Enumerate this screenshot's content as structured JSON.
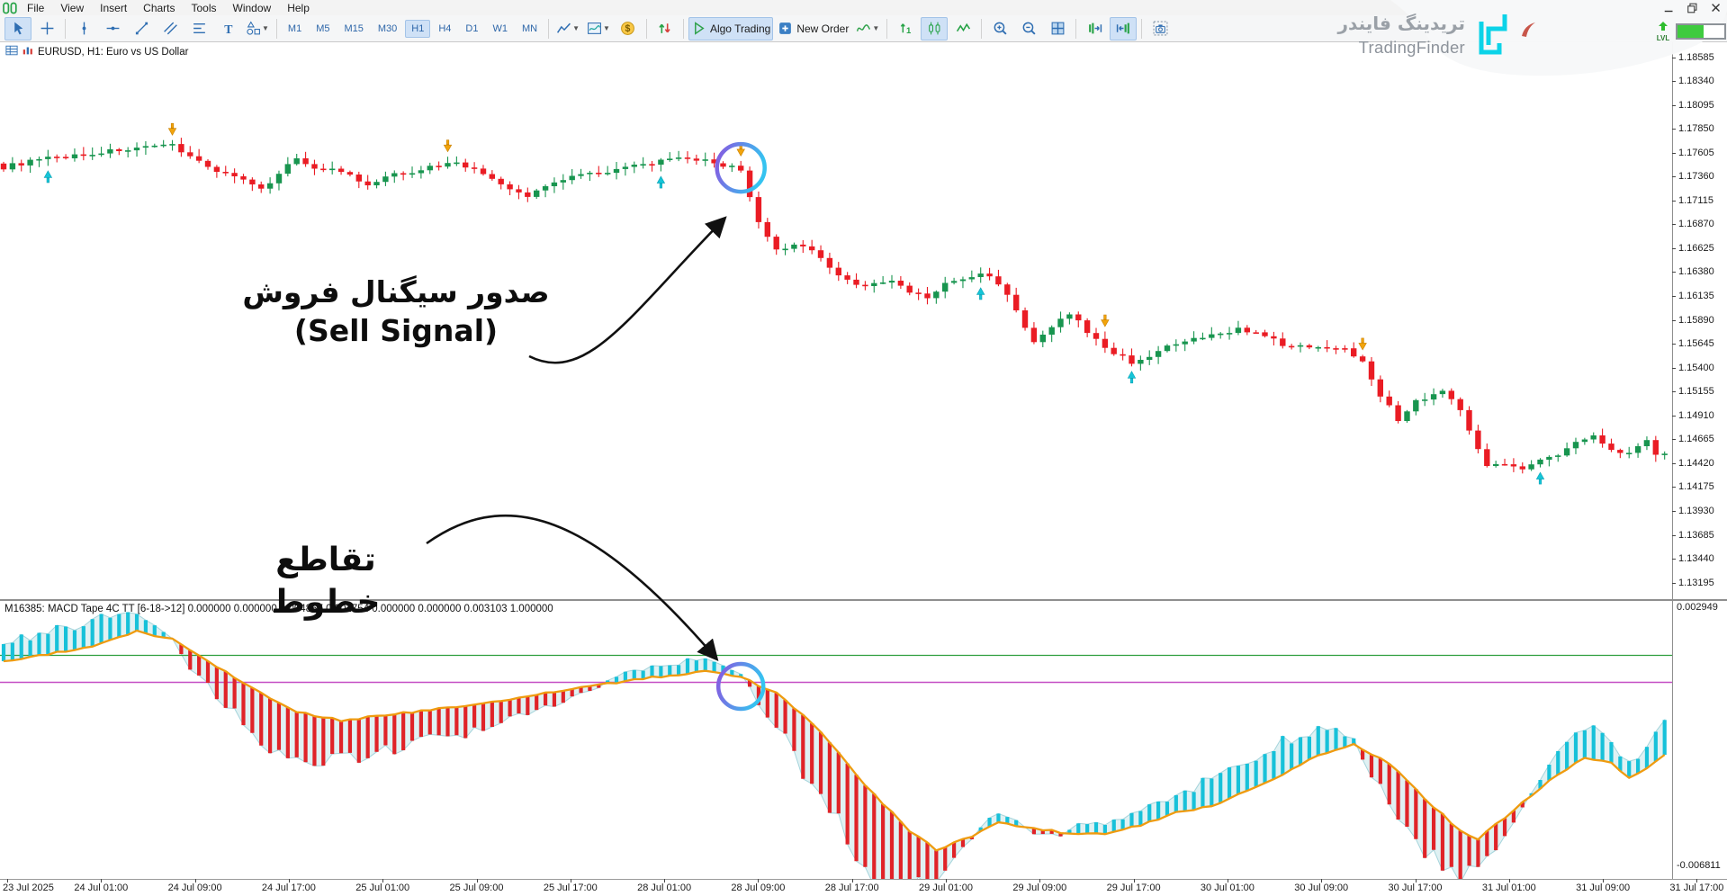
{
  "window": {
    "controls": [
      {
        "icon": "minimize-icon"
      },
      {
        "icon": "restore-icon"
      },
      {
        "icon": "close-icon"
      }
    ]
  },
  "menu": {
    "items": [
      "File",
      "View",
      "Insert",
      "Charts",
      "Tools",
      "Window",
      "Help"
    ]
  },
  "toolbar": {
    "groups": [
      {
        "items": [
          {
            "icon": "cursor-icon",
            "active": true
          },
          {
            "icon": "crosshair-icon"
          }
        ]
      },
      {
        "items": [
          {
            "icon": "vertical-line-icon"
          },
          {
            "icon": "horizontal-line-icon"
          },
          {
            "icon": "trendline-icon"
          },
          {
            "icon": "channel-icon"
          },
          {
            "icon": "fibonacci-icon"
          },
          {
            "icon": "text-tool-icon"
          },
          {
            "icon": "shapes-icon",
            "dropdown": true
          }
        ]
      },
      {
        "timeframes": [
          "M1",
          "M5",
          "M15",
          "M30",
          "H1",
          "H4",
          "D1",
          "W1",
          "MN"
        ],
        "active": "H1"
      },
      {
        "items": [
          {
            "icon": "line-chart-icon",
            "dropdown": true
          },
          {
            "icon": "indicator-window-icon",
            "dropdown": true
          },
          {
            "icon": "dollar-icon"
          }
        ]
      },
      {
        "items": [
          {
            "icon": "buy-sell-arrows-icon"
          }
        ]
      },
      {
        "items": [
          {
            "icon": "algo-play-icon",
            "label": "Algo Trading",
            "active": true,
            "name": "algo-trading-button"
          },
          {
            "icon": "new-order-icon",
            "label": "New Order",
            "name": "new-order-button"
          },
          {
            "icon": "indicator-curve-icon",
            "dropdown": true
          }
        ]
      },
      {
        "items": [
          {
            "icon": "scale-updown-icon"
          },
          {
            "icon": "candles-icon",
            "active": true
          },
          {
            "icon": "zigzag-icon"
          }
        ]
      },
      {
        "items": [
          {
            "icon": "zoom-in-icon"
          },
          {
            "icon": "zoom-out-icon"
          },
          {
            "icon": "tile-windows-icon"
          }
        ]
      },
      {
        "items": [
          {
            "icon": "shift-right-icon"
          },
          {
            "icon": "shift-left-icon",
            "active": true
          }
        ]
      },
      {
        "items": [
          {
            "icon": "screenshot-icon"
          }
        ]
      }
    ]
  },
  "chart": {
    "symbol_label": "EURUSD, H1: Euro vs US Dollar",
    "indicator_label": "M16385: MACD Tape 4C TT [6-18->12] 0.000000 0.000000 0.004857 0.001754 0.000000 0.000000 0.003103 1.000000",
    "indicator_scale_top": "0.002949",
    "indicator_scale_bottom": "-0.006811",
    "price_axis_labels": [
      "1.18585",
      "1.18340",
      "1.18095",
      "1.17850",
      "1.17605",
      "1.17360",
      "1.17115",
      "1.16870",
      "1.16625",
      "1.16380",
      "1.16135",
      "1.15890",
      "1.15645",
      "1.15400",
      "1.15155",
      "1.14910",
      "1.14665",
      "1.14420",
      "1.14175",
      "1.13930",
      "1.13685",
      "1.13440",
      "1.13195"
    ]
  },
  "annotations": {
    "sell_fa": "صدور سیگنال فروش",
    "sell_en": "(Sell Signal)",
    "cross_fa": "تقاطع خطوط"
  },
  "watermark": {
    "brand_fa": "تریدینگ فایندر",
    "brand_en": "TradingFinder",
    "lvl": "LVL",
    "progress_percent": 55,
    "logo_color": "#0cd3e8"
  },
  "colors": {
    "candle_up": "#18954f",
    "candle_down": "#ea1c24",
    "buy_marker": "#15c5d8",
    "sell_marker": "#f2a40c",
    "macd_signal_line": "#ef9b0f",
    "macd_bar_up": "#17c1d9",
    "macd_bar_down": "#e02328",
    "zero_line_purple": "#c44fc4",
    "level_line_green": "#2e9e3e",
    "ring_gradient": [
      "#8a55e0",
      "#35c3f0"
    ]
  },
  "chart_data": [
    {
      "type": "candlestick",
      "symbol": "EURUSD",
      "timeframe": "H1",
      "bars": 188,
      "price_axis": {
        "max": 1.18585,
        "min": 1.13195,
        "tick": 0.00245
      },
      "time_labels": [
        "23 Jul 2025",
        "24 Jul 01:00",
        "24 Jul 09:00",
        "24 Jul 17:00",
        "25 Jul 01:00",
        "25 Jul 09:00",
        "25 Jul 17:00",
        "28 Jul 01:00",
        "28 Jul 09:00",
        "28 Jul 17:00",
        "29 Jul 01:00",
        "29 Jul 09:00",
        "29 Jul 17:00",
        "30 Jul 01:00",
        "30 Jul 09:00",
        "30 Jul 17:00",
        "31 Jul 01:00",
        "31 Jul 09:00",
        "31 Jul 17:00"
      ],
      "close_waypoints": [
        [
          0,
          1.1746
        ],
        [
          3,
          1.1752
        ],
        [
          6,
          1.1756
        ],
        [
          10,
          1.176
        ],
        [
          13,
          1.1764
        ],
        [
          17,
          1.1766
        ],
        [
          19,
          1.1769
        ],
        [
          21,
          1.1758
        ],
        [
          23,
          1.1746
        ],
        [
          26,
          1.1737
        ],
        [
          29,
          1.1722
        ],
        [
          31,
          1.1741
        ],
        [
          33,
          1.1755
        ],
        [
          35,
          1.1746
        ],
        [
          38,
          1.1742
        ],
        [
          41,
          1.1726
        ],
        [
          43,
          1.1736
        ],
        [
          46,
          1.1742
        ],
        [
          49,
          1.1748
        ],
        [
          51,
          1.1752
        ],
        [
          53,
          1.1743
        ],
        [
          55,
          1.1735
        ],
        [
          57,
          1.1722
        ],
        [
          59,
          1.1716
        ],
        [
          61,
          1.1727
        ],
        [
          64,
          1.1738
        ],
        [
          68,
          1.1742
        ],
        [
          71,
          1.1747
        ],
        [
          74,
          1.1752
        ],
        [
          77,
          1.1755
        ],
        [
          80,
          1.1751
        ],
        [
          82,
          1.1746
        ],
        [
          83,
          1.1741
        ],
        [
          84,
          1.1714
        ],
        [
          85,
          1.169
        ],
        [
          86,
          1.1673
        ],
        [
          87,
          1.166
        ],
        [
          89,
          1.1668
        ],
        [
          91,
          1.1661
        ],
        [
          93,
          1.1643
        ],
        [
          95,
          1.163
        ],
        [
          97,
          1.1624
        ],
        [
          100,
          1.1629
        ],
        [
          102,
          1.1618
        ],
        [
          104,
          1.1612
        ],
        [
          106,
          1.1626
        ],
        [
          108,
          1.1631
        ],
        [
          110,
          1.1637
        ],
        [
          112,
          1.1628
        ],
        [
          114,
          1.16
        ],
        [
          116,
          1.1565
        ],
        [
          118,
          1.1581
        ],
        [
          120,
          1.1597
        ],
        [
          122,
          1.1577
        ],
        [
          124,
          1.1561
        ],
        [
          127,
          1.1546
        ],
        [
          129,
          1.1553
        ],
        [
          131,
          1.1561
        ],
        [
          134,
          1.1569
        ],
        [
          137,
          1.1575
        ],
        [
          139,
          1.1581
        ],
        [
          142,
          1.1572
        ],
        [
          145,
          1.1561
        ],
        [
          148,
          1.1563
        ],
        [
          151,
          1.1559
        ],
        [
          153,
          1.1548
        ],
        [
          155,
          1.1513
        ],
        [
          157,
          1.1487
        ],
        [
          159,
          1.1506
        ],
        [
          162,
          1.1517
        ],
        [
          164,
          1.1497
        ],
        [
          166,
          1.1459
        ],
        [
          167,
          1.1438
        ],
        [
          169,
          1.1443
        ],
        [
          171,
          1.1438
        ],
        [
          173,
          1.1445
        ],
        [
          175,
          1.1451
        ],
        [
          177,
          1.1463
        ],
        [
          179,
          1.1471
        ],
        [
          181,
          1.1458
        ],
        [
          183,
          1.1452
        ],
        [
          185,
          1.1468
        ],
        [
          186,
          1.1452
        ],
        [
          188,
          1.1449
        ]
      ],
      "markers": {
        "sell_bars": [
          19,
          50,
          83,
          124,
          153
        ],
        "buy_bars": [
          5,
          74,
          110,
          127,
          173
        ]
      },
      "highlight": {
        "bar": 83,
        "meaning": "sell signal circle"
      }
    },
    {
      "type": "macd_tape",
      "title": "MACD Tape 4C TT [6-18->12]",
      "scale": {
        "top": 0.002949,
        "bottom": -0.006811
      },
      "zero_line": 0,
      "green_level": 0.001,
      "signal_waypoints": [
        [
          0,
          0.0008
        ],
        [
          10,
          0.0013
        ],
        [
          15,
          0.0019
        ],
        [
          19,
          0.0016
        ],
        [
          24,
          0.0006
        ],
        [
          28,
          -0.0002
        ],
        [
          33,
          -0.0011
        ],
        [
          38,
          -0.0014
        ],
        [
          46,
          -0.0011
        ],
        [
          56,
          -0.0007
        ],
        [
          63,
          -0.0003
        ],
        [
          71,
          0.0001
        ],
        [
          79,
          0.0004
        ],
        [
          83,
          0.0002
        ],
        [
          87,
          -0.0004
        ],
        [
          92,
          -0.0018
        ],
        [
          97,
          -0.0038
        ],
        [
          102,
          -0.0055
        ],
        [
          105,
          -0.0062
        ],
        [
          109,
          -0.0057
        ],
        [
          112,
          -0.0052
        ],
        [
          116,
          -0.0054
        ],
        [
          120,
          -0.0056
        ],
        [
          124,
          -0.0056
        ],
        [
          128,
          -0.0053
        ],
        [
          132,
          -0.0048
        ],
        [
          136,
          -0.0046
        ],
        [
          140,
          -0.004
        ],
        [
          144,
          -0.0034
        ],
        [
          148,
          -0.0027
        ],
        [
          152,
          -0.0023
        ],
        [
          156,
          -0.003
        ],
        [
          160,
          -0.0043
        ],
        [
          164,
          -0.0055
        ],
        [
          166,
          -0.0058
        ],
        [
          169,
          -0.005
        ],
        [
          172,
          -0.0042
        ],
        [
          175,
          -0.0034
        ],
        [
          178,
          -0.0028
        ],
        [
          181,
          -0.003
        ],
        [
          183,
          -0.0035
        ],
        [
          185,
          -0.0032
        ],
        [
          188,
          -0.0024
        ]
      ],
      "delta_waypoints": [
        [
          0,
          0.0007
        ],
        [
          12,
          0.0009
        ],
        [
          17,
          0.0004
        ],
        [
          19,
          0
        ],
        [
          21,
          -0.0006
        ],
        [
          30,
          -0.0018
        ],
        [
          40,
          -0.0013
        ],
        [
          52,
          -0.001
        ],
        [
          62,
          -0.0005
        ],
        [
          67,
          -0.0001
        ],
        [
          69,
          0.0003
        ],
        [
          77,
          0.0005
        ],
        [
          81,
          0.0003
        ],
        [
          83,
          0.0001
        ],
        [
          85,
          -0.0006
        ],
        [
          90,
          -0.002
        ],
        [
          95,
          -0.003
        ],
        [
          100,
          -0.0026
        ],
        [
          104,
          -0.0015
        ],
        [
          107,
          -0.0006
        ],
        [
          109,
          -0.0001
        ],
        [
          111,
          0.0004
        ],
        [
          114,
          0.0002
        ],
        [
          116,
          -0.0002
        ],
        [
          119,
          -0.0001
        ],
        [
          121,
          0.0004
        ],
        [
          126,
          0.0004
        ],
        [
          131,
          0.0006
        ],
        [
          137,
          0.001
        ],
        [
          144,
          0.0012
        ],
        [
          149,
          0.0009
        ],
        [
          152,
          0.0002
        ],
        [
          154,
          -0.0008
        ],
        [
          159,
          -0.002
        ],
        [
          164,
          -0.0016
        ],
        [
          168,
          -0.0008
        ],
        [
          171,
          -0.0002
        ],
        [
          173,
          0.0004
        ],
        [
          176,
          0.001
        ],
        [
          179,
          0.0012
        ],
        [
          182,
          0.0005
        ],
        [
          184,
          0.0006
        ],
        [
          188,
          0.0014
        ]
      ],
      "highlight": {
        "bar": 83,
        "meaning": "line cross circle"
      }
    }
  ]
}
